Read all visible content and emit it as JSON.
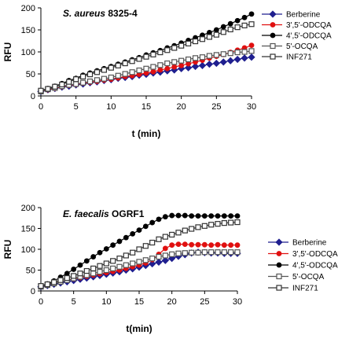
{
  "chart_data": [
    {
      "type": "line",
      "title_species": "S. aureus",
      "title_strain": "8325-4",
      "xlabel": "t (min)",
      "ylabel": "RFU",
      "xlim": [
        0,
        30
      ],
      "ylim": [
        0,
        200
      ],
      "xticks": [
        "0",
        "5",
        "10",
        "15",
        "20",
        "25",
        "30"
      ],
      "yticks": [
        "0",
        "50",
        "100",
        "150",
        "200"
      ],
      "legend_position": "right",
      "series": [
        {
          "name": "Berberine",
          "color": "#1f1f8f",
          "marker": "diamond",
          "x": [
            0,
            1,
            2,
            3,
            4,
            5,
            6,
            7,
            8,
            9,
            10,
            11,
            12,
            13,
            14,
            15,
            16,
            17,
            18,
            19,
            20,
            21,
            22,
            23,
            24,
            25,
            26,
            27,
            28,
            29,
            30
          ],
          "values": [
            10,
            14,
            17,
            20,
            22,
            25,
            27,
            30,
            32,
            35,
            37,
            40,
            42,
            44,
            47,
            49,
            52,
            54,
            57,
            59,
            62,
            64,
            67,
            69,
            72,
            74,
            77,
            80,
            83,
            86,
            88
          ]
        },
        {
          "name": "3',5'-ODCQA",
          "color": "#e01010",
          "marker": "circle",
          "x": [
            0,
            1,
            2,
            3,
            4,
            5,
            6,
            7,
            8,
            9,
            10,
            11,
            12,
            13,
            14,
            15,
            16,
            17,
            18,
            19,
            20,
            21,
            22,
            23,
            24,
            25,
            26,
            27,
            28,
            29,
            30
          ],
          "values": [
            10,
            14,
            17,
            21,
            24,
            26,
            29,
            31,
            33,
            36,
            38,
            41,
            44,
            46,
            49,
            52,
            55,
            59,
            62,
            66,
            69,
            73,
            77,
            81,
            86,
            90,
            94,
            99,
            104,
            109,
            115
          ]
        },
        {
          "name": "4',5'-ODCQA",
          "color": "#000000",
          "marker": "circle",
          "x": [
            0,
            1,
            2,
            3,
            4,
            5,
            6,
            7,
            8,
            9,
            10,
            11,
            12,
            13,
            14,
            15,
            16,
            17,
            18,
            19,
            20,
            21,
            22,
            23,
            24,
            25,
            26,
            27,
            28,
            29,
            30
          ],
          "values": [
            12,
            17,
            22,
            28,
            35,
            40,
            47,
            52,
            57,
            62,
            67,
            72,
            77,
            82,
            87,
            93,
            98,
            103,
            109,
            114,
            120,
            126,
            132,
            138,
            144,
            150,
            157,
            164,
            171,
            178,
            186
          ]
        },
        {
          "name": "5'-OCQA",
          "color": "#555555",
          "marker": "square",
          "x": [
            0,
            1,
            2,
            3,
            4,
            5,
            6,
            7,
            8,
            9,
            10,
            11,
            12,
            13,
            14,
            15,
            16,
            17,
            18,
            19,
            20,
            21,
            22,
            23,
            24,
            25,
            26,
            27,
            28,
            29,
            30
          ],
          "values": [
            10,
            15,
            18,
            22,
            25,
            27,
            30,
            33,
            36,
            39,
            42,
            46,
            50,
            54,
            58,
            62,
            66,
            70,
            74,
            77,
            80,
            83,
            86,
            88,
            91,
            93,
            95,
            97,
            99,
            100,
            102
          ]
        },
        {
          "name": "INF271",
          "color": "#333333",
          "marker": "square",
          "x": [
            0,
            1,
            2,
            3,
            4,
            5,
            6,
            7,
            8,
            9,
            10,
            11,
            12,
            13,
            14,
            15,
            16,
            17,
            18,
            19,
            20,
            21,
            22,
            23,
            24,
            25,
            26,
            27,
            28,
            29,
            30
          ],
          "values": [
            12,
            16,
            21,
            26,
            32,
            38,
            44,
            49,
            54,
            59,
            64,
            69,
            74,
            79,
            84,
            89,
            94,
            99,
            104,
            109,
            114,
            119,
            124,
            129,
            134,
            139,
            145,
            151,
            156,
            160,
            163
          ]
        }
      ]
    },
    {
      "type": "line",
      "title_species": "E. faecalis",
      "title_strain": "OGRF1",
      "xlabel": "t(min)",
      "ylabel": "RFU",
      "xlim": [
        0,
        30
      ],
      "ylim": [
        0,
        200
      ],
      "xticks": [
        "0",
        "5",
        "10",
        "15",
        "20",
        "25",
        "30"
      ],
      "yticks": [
        "0",
        "50",
        "100",
        "150",
        "200"
      ],
      "legend_position": "right",
      "series": [
        {
          "name": "Berberine",
          "color": "#1f1f8f",
          "marker": "diamond",
          "x": [
            0,
            1,
            2,
            3,
            4,
            5,
            6,
            7,
            8,
            9,
            10,
            11,
            12,
            13,
            14,
            15,
            16,
            17,
            18,
            19,
            20,
            21,
            22,
            23,
            24,
            25,
            26,
            27,
            28,
            29,
            30
          ],
          "values": [
            10,
            13,
            16,
            19,
            22,
            25,
            28,
            31,
            34,
            37,
            40,
            43,
            46,
            50,
            53,
            57,
            61,
            65,
            69,
            73,
            78,
            83,
            87,
            91,
            93,
            92,
            91,
            91,
            90,
            90,
            90
          ]
        },
        {
          "name": "3',5'-ODCQA",
          "color": "#e01010",
          "marker": "circle",
          "x": [
            0,
            1,
            2,
            3,
            4,
            5,
            6,
            7,
            8,
            9,
            10,
            11,
            12,
            13,
            14,
            15,
            16,
            17,
            18,
            19,
            20,
            21,
            22,
            23,
            24,
            25,
            26,
            27,
            28,
            29,
            30
          ],
          "values": [
            10,
            14,
            18,
            22,
            26,
            29,
            32,
            35,
            38,
            41,
            44,
            47,
            50,
            54,
            58,
            62,
            67,
            75,
            88,
            102,
            110,
            112,
            112,
            111,
            111,
            111,
            110,
            111,
            110,
            110,
            110
          ]
        },
        {
          "name": "4',5'-ODCQA",
          "color": "#000000",
          "marker": "circle",
          "x": [
            0,
            1,
            2,
            3,
            4,
            5,
            6,
            7,
            8,
            9,
            10,
            11,
            12,
            13,
            14,
            15,
            16,
            17,
            18,
            19,
            20,
            21,
            22,
            23,
            24,
            25,
            26,
            27,
            28,
            29,
            30
          ],
          "values": [
            12,
            17,
            24,
            33,
            42,
            52,
            62,
            72,
            82,
            92,
            101,
            110,
            119,
            128,
            137,
            146,
            155,
            164,
            172,
            178,
            181,
            181,
            181,
            180,
            180,
            180,
            180,
            180,
            180,
            180,
            180
          ]
        },
        {
          "name": "5'-OCQA",
          "color": "#555555",
          "marker": "square",
          "x": [
            0,
            1,
            2,
            3,
            4,
            5,
            6,
            7,
            8,
            9,
            10,
            11,
            12,
            13,
            14,
            15,
            16,
            17,
            18,
            19,
            20,
            21,
            22,
            23,
            24,
            25,
            26,
            27,
            28,
            29,
            30
          ],
          "values": [
            10,
            14,
            18,
            22,
            26,
            30,
            34,
            38,
            42,
            46,
            50,
            54,
            58,
            62,
            66,
            70,
            74,
            78,
            82,
            85,
            88,
            90,
            91,
            92,
            92,
            93,
            93,
            93,
            93,
            93,
            93
          ]
        },
        {
          "name": "INF271",
          "color": "#333333",
          "marker": "square",
          "x": [
            0,
            1,
            2,
            3,
            4,
            5,
            6,
            7,
            8,
            9,
            10,
            11,
            12,
            13,
            14,
            15,
            16,
            17,
            18,
            19,
            20,
            21,
            22,
            23,
            24,
            25,
            26,
            27,
            28,
            29,
            30
          ],
          "values": [
            12,
            16,
            21,
            26,
            31,
            36,
            42,
            48,
            54,
            60,
            66,
            72,
            78,
            85,
            92,
            100,
            108,
            116,
            124,
            130,
            135,
            140,
            145,
            149,
            153,
            156,
            159,
            161,
            163,
            164,
            165
          ]
        }
      ]
    }
  ]
}
